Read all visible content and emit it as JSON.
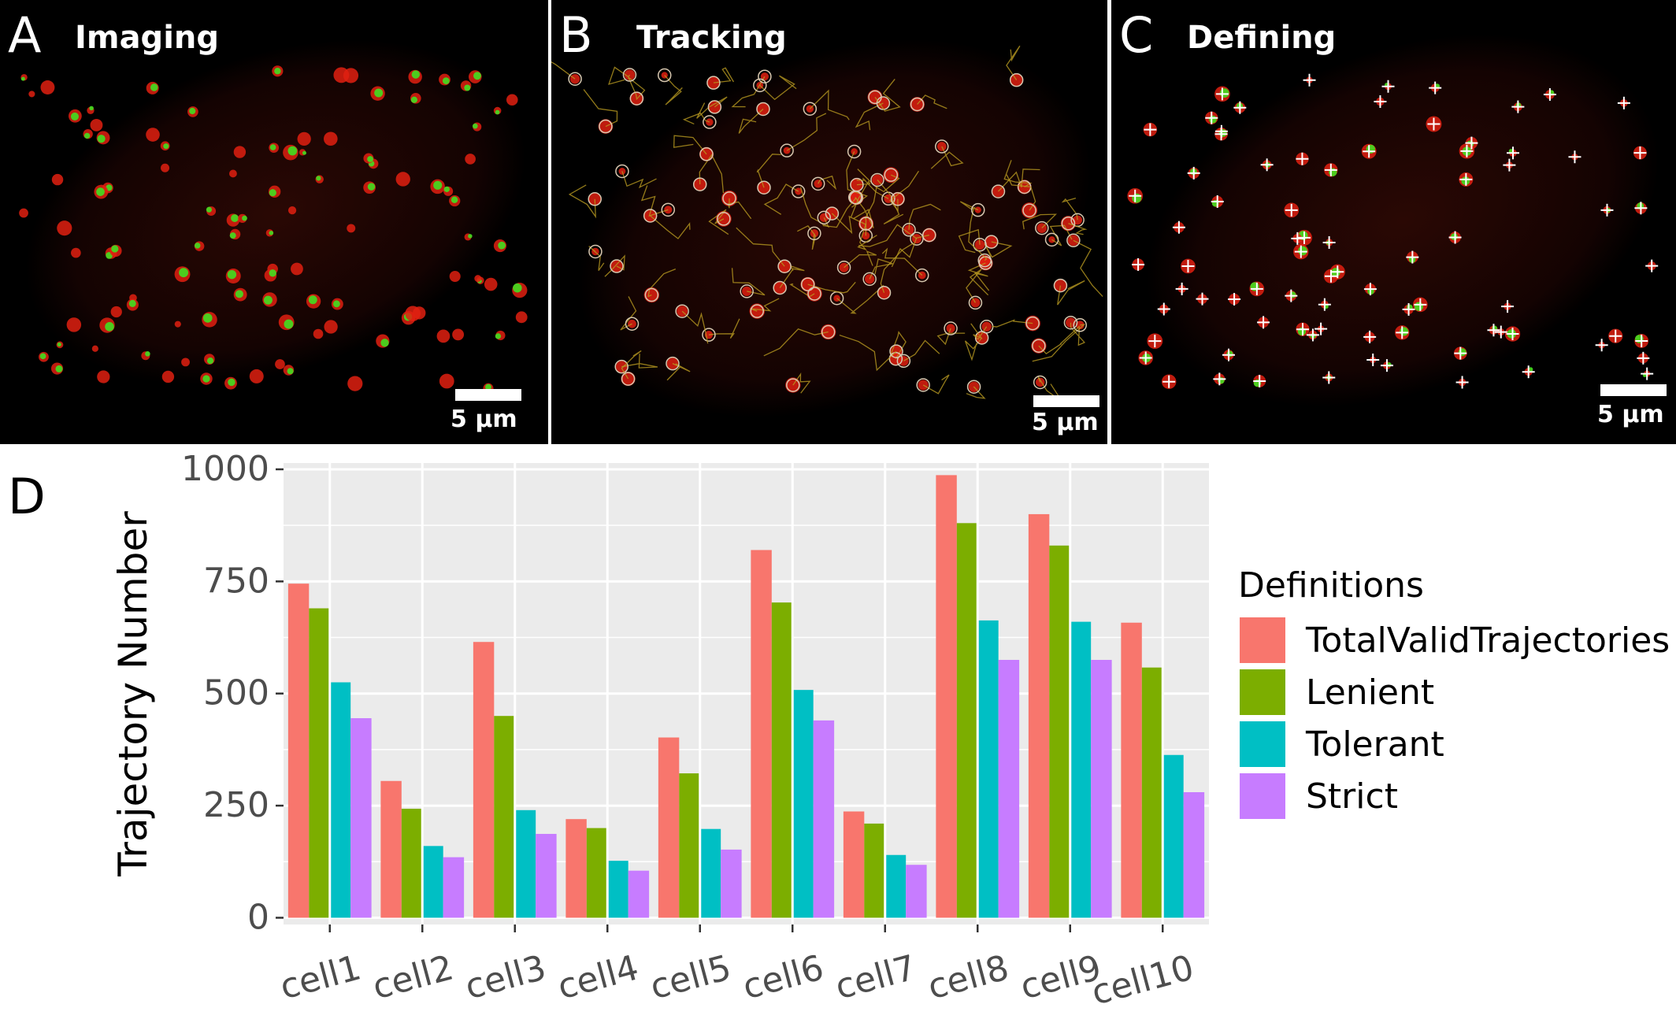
{
  "panels": [
    {
      "letter": "A",
      "title": "Imaging",
      "scale_label": "5 μm"
    },
    {
      "letter": "B",
      "title": "Tracking",
      "scale_label": "5 μm"
    },
    {
      "letter": "C",
      "title": "Defining",
      "scale_label": "5 μm"
    }
  ],
  "colors": {
    "spot_red": "#e02010",
    "spot_green": "#40e020",
    "circle": "#d8c8b0",
    "track": "#b89a20",
    "cross": "#ffffff",
    "panel_bg": "#000000",
    "plot_bg": "#ebebeb",
    "grid": "#ffffff"
  },
  "chart_panel_letter": "D",
  "chart_data": {
    "type": "bar",
    "categories": [
      "cell1",
      "cell2",
      "cell3",
      "cell4",
      "cell5",
      "cell6",
      "cell7",
      "cell8",
      "cell9",
      "cell10"
    ],
    "series": [
      {
        "name": "TotalValidTrajectories",
        "color": "#F8766D",
        "values": [
          745,
          305,
          615,
          220,
          402,
          820,
          237,
          987,
          900,
          658
        ]
      },
      {
        "name": "Lenient",
        "color": "#7CAE00",
        "values": [
          690,
          243,
          450,
          200,
          322,
          703,
          210,
          880,
          830,
          558
        ]
      },
      {
        "name": "Tolerant",
        "color": "#00BFC4",
        "values": [
          525,
          160,
          240,
          127,
          198,
          508,
          140,
          663,
          660,
          363
        ]
      },
      {
        "name": "Strict",
        "color": "#C77CFF",
        "values": [
          445,
          135,
          187,
          105,
          152,
          440,
          118,
          575,
          575,
          280
        ]
      }
    ],
    "xlabel": "",
    "ylabel": "Trajectory Number",
    "ylim": [
      0,
      1000
    ],
    "yticks": [
      0,
      250,
      500,
      750,
      1000
    ],
    "legend_title": "Definitions",
    "legend_position": "right",
    "grid": true
  }
}
